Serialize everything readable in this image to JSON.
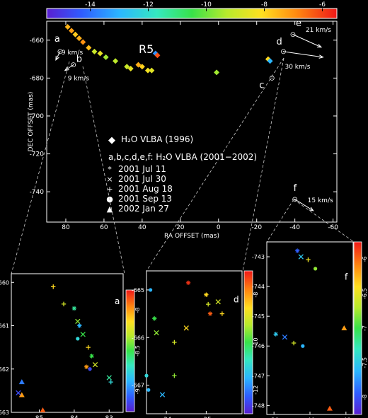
{
  "colorbar": {
    "ticks": [
      "-14",
      "-12",
      "-10",
      "-8",
      "-6"
    ],
    "range": [
      -15.5,
      -5.5
    ]
  },
  "main": {
    "title": "R5",
    "xlabel": "RA OFFSET (mas)",
    "ylabel": "DEC OFFSET (mas)",
    "xticks": [
      "80",
      "60",
      "40",
      "20",
      "0",
      "-20",
      "-40",
      "-60"
    ],
    "yticks": [
      "-660",
      "-680",
      "-700",
      "-720",
      "-740"
    ],
    "features": [
      {
        "letter": "a",
        "velocity": "9 km/s"
      },
      {
        "letter": "b",
        "velocity": "9 km/s"
      },
      {
        "letter": "c",
        "velocity": ""
      },
      {
        "letter": "d",
        "velocity": "30 km/s"
      },
      {
        "letter": "e",
        "velocity": "21 km/s"
      },
      {
        "letter": "f",
        "velocity": "15 km/s"
      }
    ],
    "legend": {
      "vlba1996": "H₂O VLBA (1996)",
      "vlba2001_header": "a,b,c,d,e,f: H₂O VLBA (2001−2002)",
      "epochs": [
        {
          "symbol": "*",
          "label": "2001 Jul 11"
        },
        {
          "symbol": "×",
          "label": "2001 Jul 30"
        },
        {
          "symbol": "+",
          "label": "2001 Aug 18"
        },
        {
          "symbol": "●",
          "label": "2001 Sep 13"
        },
        {
          "symbol": "▲",
          "label": "2002 Jan 27"
        }
      ]
    }
  },
  "insets": [
    {
      "letter": "a",
      "xticks": [
        "85",
        "84",
        "83"
      ],
      "yticks": [
        "-660",
        "-661",
        "-662",
        "-663"
      ],
      "cbar_ticks": [
        "-8",
        "-8.5",
        "-9"
      ]
    },
    {
      "letter": "d",
      "xticks": [
        "-34",
        "-35"
      ],
      "yticks": [
        "-665",
        "-666",
        "-667"
      ],
      "cbar_ticks": [
        "-8",
        "-10",
        "-12"
      ]
    },
    {
      "letter": "f",
      "xticks": [
        "-39",
        "-40",
        "-41"
      ],
      "yticks": [
        "-743",
        "-744",
        "-745",
        "-746",
        "-747",
        "-748"
      ],
      "cbar_ticks": [
        "-6",
        "-6.5",
        "-7",
        "-7.5",
        "-8"
      ]
    }
  ],
  "chart_data": {
    "type": "scatter",
    "xlabel": "RA OFFSET (mas)",
    "ylabel": "DEC OFFSET (mas)",
    "xlim": [
      90,
      -62
    ],
    "ylim": [
      -756,
      -650
    ],
    "colorbar_range": [
      -15.5,
      -5.5
    ],
    "vlba1996_points": [
      {
        "x": 79,
        "y": -653,
        "v": -7.5
      },
      {
        "x": 77,
        "y": -655,
        "v": -7.2
      },
      {
        "x": 75,
        "y": -657,
        "v": -7.8
      },
      {
        "x": 73,
        "y": -659,
        "v": -7.4
      },
      {
        "x": 71,
        "y": -661,
        "v": -7.0
      },
      {
        "x": 68,
        "y": -664,
        "v": -7.6
      },
      {
        "x": 65,
        "y": -666,
        "v": -9.0
      },
      {
        "x": 62,
        "y": -667,
        "v": -8.5
      },
      {
        "x": 59,
        "y": -669,
        "v": -9.5
      },
      {
        "x": 54,
        "y": -671,
        "v": -9.2
      },
      {
        "x": 48,
        "y": -674,
        "v": -9.0
      },
      {
        "x": 46,
        "y": -675,
        "v": -8.5
      },
      {
        "x": 42,
        "y": -673,
        "v": -7.4
      },
      {
        "x": 40,
        "y": -674,
        "v": -7.9
      },
      {
        "x": 37,
        "y": -676,
        "v": -8.3
      },
      {
        "x": 35,
        "y": -676,
        "v": -8.6
      },
      {
        "x": 33,
        "y": -667,
        "v": -13.5
      },
      {
        "x": 32,
        "y": -668,
        "v": -6.2
      },
      {
        "x": 1,
        "y": -677,
        "v": -9.5
      },
      {
        "x": -26,
        "y": -670,
        "v": -8.0
      },
      {
        "x": -27,
        "y": -671,
        "v": -13.0
      }
    ],
    "features": [
      {
        "letter": "a",
        "x": 83,
        "y": -666,
        "v_kms": 9
      },
      {
        "letter": "b",
        "x": 76,
        "y": -673,
        "v_kms": 9
      },
      {
        "letter": "c",
        "x": -28,
        "y": -680,
        "v_kms": null
      },
      {
        "letter": "d",
        "x": -34,
        "y": -666,
        "v_kms": 30
      },
      {
        "letter": "e",
        "x": -39,
        "y": -657,
        "v_kms": 21
      },
      {
        "letter": "f",
        "x": -40,
        "y": -744,
        "v_kms": 15
      }
    ],
    "inset_a": {
      "xlim": [
        85.8,
        82.6
      ],
      "ylim": [
        -663,
        -659.8
      ],
      "vlim": [
        -9,
        -7.8
      ],
      "points": [
        {
          "x": 84.3,
          "y": -660.5,
          "v": -8.2,
          "m": "+"
        },
        {
          "x": 84.0,
          "y": -660.6,
          "v": -8.5,
          "m": "*"
        },
        {
          "x": 83.9,
          "y": -660.9,
          "v": -8.3,
          "m": "x"
        },
        {
          "x": 83.85,
          "y": -661.0,
          "v": -8.7,
          "m": "*"
        },
        {
          "x": 83.75,
          "y": -661.2,
          "v": -8.4,
          "m": "x"
        },
        {
          "x": 83.9,
          "y": -661.3,
          "v": -8.6,
          "m": "dot"
        },
        {
          "x": 83.6,
          "y": -661.5,
          "v": -8.1,
          "m": "+"
        },
        {
          "x": 83.5,
          "y": -661.7,
          "v": -8.4,
          "m": "*"
        },
        {
          "x": 83.4,
          "y": -661.9,
          "v": -8.2,
          "m": "x"
        },
        {
          "x": 83.55,
          "y": -662.0,
          "v": -8.9,
          "m": "dot"
        },
        {
          "x": 83.65,
          "y": -661.95,
          "v": -8.0,
          "m": "*"
        },
        {
          "x": 83.0,
          "y": -662.2,
          "v": -8.5,
          "m": "x"
        },
        {
          "x": 82.95,
          "y": -662.3,
          "v": -8.6,
          "m": "+"
        },
        {
          "x": 85.5,
          "y": -662.3,
          "v": -8.8,
          "m": "tri"
        },
        {
          "x": 85.5,
          "y": -662.6,
          "v": -8.0,
          "m": "tri"
        },
        {
          "x": 85.6,
          "y": -662.55,
          "v": -8.9,
          "m": "x"
        },
        {
          "x": 84.9,
          "y": -662.95,
          "v": -7.9,
          "m": "tri"
        },
        {
          "x": 84.6,
          "y": -660.1,
          "v": -8.1,
          "m": "+"
        }
      ]
    },
    "inset_d": {
      "xlim": [
        -33.5,
        -35.9
      ],
      "ylim": [
        -667.6,
        -664.6
      ],
      "vlim": [
        -13,
        -7
      ],
      "points": [
        {
          "x": -33.6,
          "y": -665.0,
          "v": -11.5,
          "m": "dot"
        },
        {
          "x": -33.7,
          "y": -665.6,
          "v": -10.0,
          "m": "*"
        },
        {
          "x": -33.75,
          "y": -665.9,
          "v": -9.5,
          "m": "x"
        },
        {
          "x": -34.2,
          "y": -666.1,
          "v": -9.0,
          "m": "+"
        },
        {
          "x": -34.5,
          "y": -665.8,
          "v": -8.5,
          "m": "x"
        },
        {
          "x": -35.0,
          "y": -665.1,
          "v": -8.5,
          "m": "*"
        },
        {
          "x": -35.05,
          "y": -665.3,
          "v": -9.0,
          "m": "+"
        },
        {
          "x": -35.1,
          "y": -665.5,
          "v": -7.5,
          "m": "*"
        },
        {
          "x": -35.3,
          "y": -665.25,
          "v": -9.0,
          "m": "x"
        },
        {
          "x": -35.4,
          "y": -665.5,
          "v": -8.5,
          "m": "+"
        },
        {
          "x": -33.5,
          "y": -666.8,
          "v": -11.0,
          "m": "dot"
        },
        {
          "x": -33.55,
          "y": -667.1,
          "v": -11.5,
          "m": "dot"
        },
        {
          "x": -33.9,
          "y": -667.2,
          "v": -11.5,
          "m": "x"
        },
        {
          "x": -34.2,
          "y": -666.8,
          "v": -9.5,
          "m": "+"
        },
        {
          "x": -34.55,
          "y": -664.85,
          "v": -7.2,
          "m": "*"
        }
      ]
    },
    "inset_f": {
      "xlim": [
        -38.8,
        -41.2
      ],
      "ylim": [
        -748.3,
        -742.5
      ],
      "vlim": [
        -8.2,
        -5.8
      ],
      "points": [
        {
          "x": -39.65,
          "y": -742.8,
          "v": -7.9,
          "m": "*"
        },
        {
          "x": -39.75,
          "y": -743.0,
          "v": -7.5,
          "m": "x"
        },
        {
          "x": -39.95,
          "y": -743.1,
          "v": -6.5,
          "m": "+"
        },
        {
          "x": -40.15,
          "y": -743.4,
          "v": -6.8,
          "m": "dot"
        },
        {
          "x": -39.05,
          "y": -745.6,
          "v": -7.5,
          "m": "*"
        },
        {
          "x": -39.3,
          "y": -745.7,
          "v": -7.8,
          "m": "x"
        },
        {
          "x": -39.55,
          "y": -745.9,
          "v": -6.6,
          "m": "+"
        },
        {
          "x": -39.8,
          "y": -746.0,
          "v": -7.6,
          "m": "dot"
        },
        {
          "x": -40.95,
          "y": -745.4,
          "v": -6.2,
          "m": "tri"
        },
        {
          "x": -40.55,
          "y": -748.1,
          "v": -6.0,
          "m": "tri"
        }
      ]
    }
  }
}
